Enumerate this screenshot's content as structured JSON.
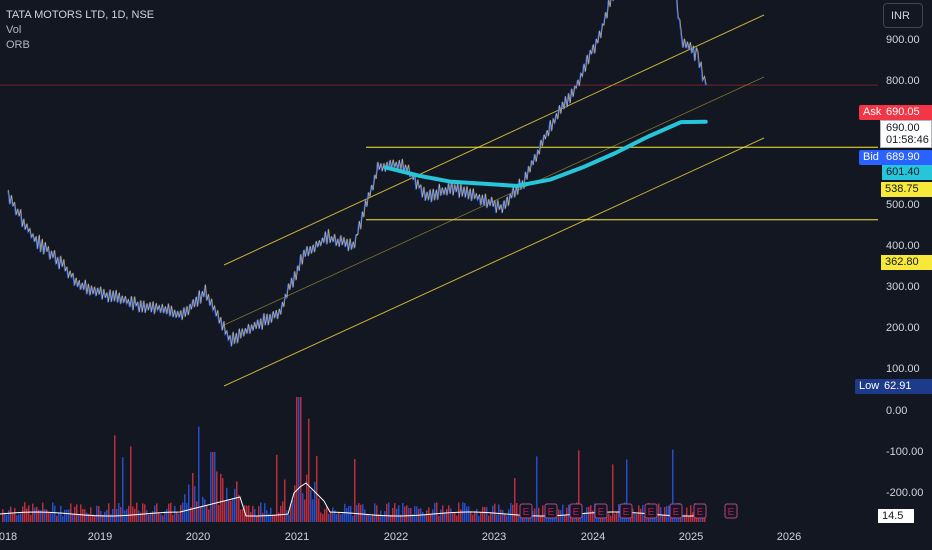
{
  "legend": {
    "title": "TATA MOTORS LTD, 1D, NSE",
    "line2": "Vol",
    "line3": "ORB"
  },
  "currency_button": "INR",
  "price_axis": {
    "ticks": [
      "900.00",
      "800.00",
      "500.00",
      "400.00",
      "300.00",
      "200.00",
      "100.00",
      "0.00",
      "-100.00",
      "-200.00"
    ]
  },
  "volume_axis": {
    "tick_labels": [
      "0.00",
      "-100.00",
      "-200.00"
    ]
  },
  "markers": {
    "ask_label": "Ask",
    "ask_value": "690.05",
    "last_price": "690.00",
    "countdown": "01:58:46",
    "bid_label": "Bid",
    "bid_value": "689.90",
    "ma_value": "601.40",
    "resistance": "538.75",
    "support": "362.80",
    "low_label": "Low",
    "low_value": "62.91",
    "volume_value": "14.5 M"
  },
  "time_axis": [
    "018",
    "2019",
    "2020",
    "2021",
    "2022",
    "2023",
    "2024",
    "2025",
    "2026"
  ],
  "earnings_marker": "E",
  "colors": {
    "background": "#131722",
    "up_candle": "#2962ff",
    "down_candle": "#ef5350",
    "price_line": "#f7c948",
    "moving_average": "#26c6da",
    "channel": "#c9b037",
    "ask": "#f23645",
    "bid": "#2962ff",
    "level": "#f7e93a",
    "low": "#1e3a8a",
    "vol_up": "#2962ff",
    "vol_down": "#f23645"
  },
  "chart_data": {
    "type": "line",
    "title": "TATA MOTORS LTD, 1D, NSE",
    "series": [
      {
        "name": "TATA MOTORS LTD",
        "x": [
          "2018-01",
          "2018-04",
          "2018-07",
          "2018-10",
          "2019-01",
          "2019-04",
          "2019-07",
          "2019-10",
          "2020-01",
          "2020-04",
          "2020-07",
          "2020-10",
          "2021-01",
          "2021-04",
          "2021-07",
          "2021-10",
          "2022-01",
          "2022-04",
          "2022-07",
          "2022-10",
          "2023-01",
          "2023-04",
          "2023-07",
          "2023-10",
          "2024-01",
          "2024-04",
          "2024-07",
          "2024-10",
          "2024-11",
          "2025-01",
          "2025-02"
        ],
        "values": [
          420,
          320,
          265,
          200,
          180,
          160,
          150,
          130,
          185,
          70,
          105,
          135,
          280,
          320,
          295,
          490,
          500,
          420,
          440,
          420,
          390,
          460,
          590,
          680,
          810,
          990,
          1050,
          950,
          800,
          760,
          690
        ]
      },
      {
        "name": "ORB",
        "x": [
          "2021-11",
          "2022-03",
          "2022-07",
          "2022-11",
          "2023-03",
          "2023-07",
          "2023-11",
          "2024-03",
          "2024-07",
          "2024-11",
          "2025-02"
        ],
        "values": [
          490,
          470,
          455,
          450,
          445,
          460,
          490,
          525,
          565,
          600,
          601
        ]
      }
    ],
    "volume": {
      "name": "Vol",
      "x": [
        "2018",
        "2019",
        "2020",
        "2020-03",
        "2021",
        "2021-05",
        "2022",
        "2023",
        "2024",
        "2025"
      ],
      "values": [
        20,
        15,
        40,
        160,
        60,
        140,
        70,
        30,
        25,
        14.5
      ]
    },
    "levels": [
      {
        "label": "Resistance",
        "value": 538.75
      },
      {
        "label": "Support",
        "value": 362.8
      },
      {
        "label": "Ask",
        "value": 690.05
      },
      {
        "label": "Bid",
        "value": 689.9
      },
      {
        "label": "MA",
        "value": 601.4
      },
      {
        "label": "Low",
        "value": 62.91
      }
    ],
    "ylim": [
      0,
      1050
    ],
    "grid": false,
    "legend": "top-left"
  }
}
